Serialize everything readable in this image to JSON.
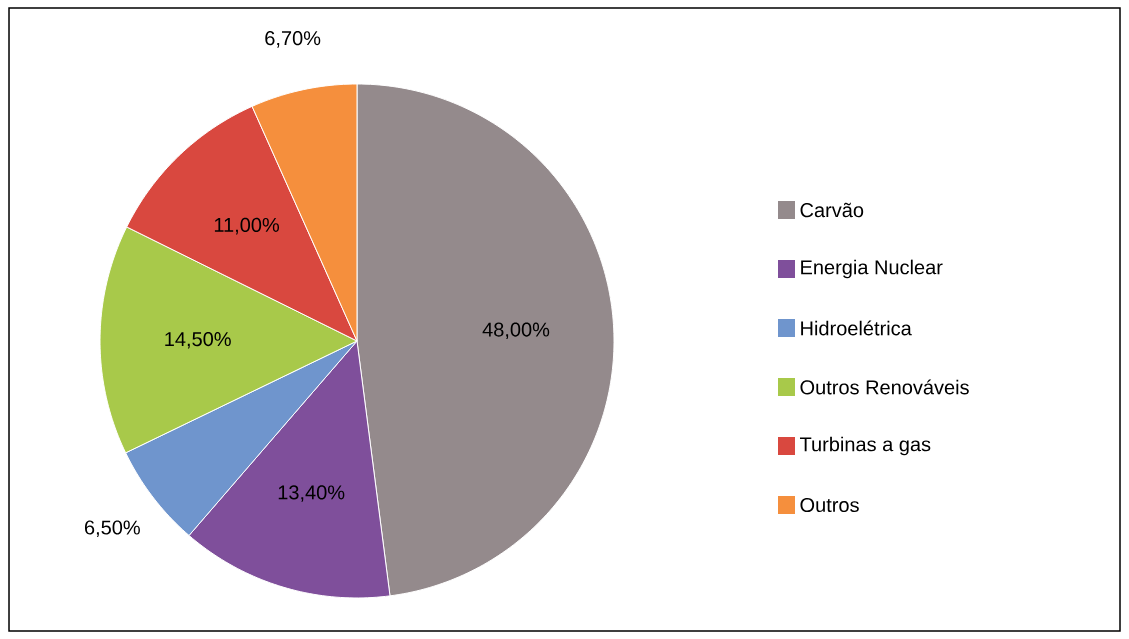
{
  "chart_data": {
    "type": "pie",
    "categories": [
      "Carvão",
      "Energia Nuclear",
      "Hidroelétrica",
      "Outros Renováveis",
      "Turbinas a gas",
      "Outros"
    ],
    "values": [
      48,
      13.4,
      6.5,
      14.5,
      11,
      6.7
    ],
    "colors": [
      "#948a8c",
      "#7f4f9b",
      "#6f95cd",
      "#a8c94a",
      "#d9483f",
      "#f58f3d"
    ],
    "value_labels": [
      "48,00%",
      "13,40%",
      "6,50%",
      "14,50%",
      "11,00%",
      "6,70%"
    ],
    "legend": "right"
  }
}
